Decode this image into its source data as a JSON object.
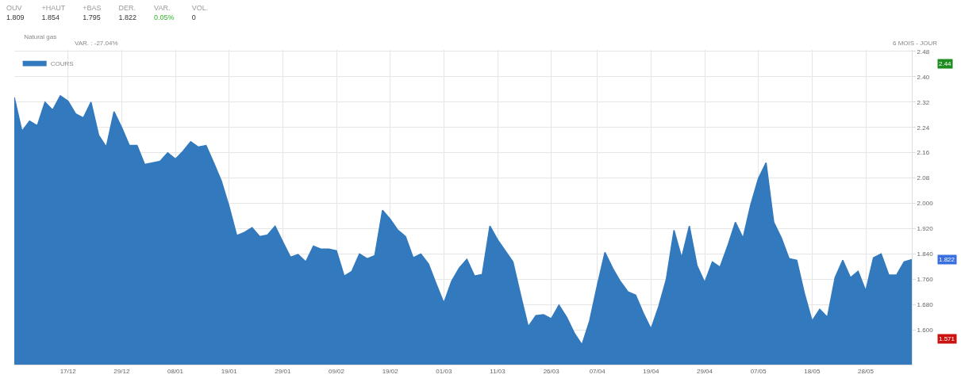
{
  "chart_data": {
    "type": "area",
    "title": "Natural gas",
    "subtitle": "VAR. : -27.04%",
    "annotations": [
      "OUV\n1.809",
      "+HAUT\n1.854",
      "+BAS\n1.795",
      "DER.\n1.822",
      "VAR.\n0.05%",
      "VOL.\n0",
      "6 MOIS - JOUR",
      "2.44",
      "1.822",
      "1.571"
    ],
    "categories": [
      null,
      null,
      null,
      null,
      null,
      null,
      null,
      "17/12",
      null,
      null,
      null,
      null,
      null,
      null,
      "29/12",
      null,
      null,
      null,
      null,
      null,
      null,
      "08/01",
      null,
      null,
      null,
      null,
      null,
      null,
      "19/01",
      null,
      null,
      null,
      null,
      null,
      null,
      "29/01",
      null,
      null,
      null,
      null,
      null,
      null,
      "09/02",
      null,
      null,
      null,
      null,
      null,
      null,
      "19/02",
      null,
      null,
      null,
      null,
      null,
      null,
      "01/03",
      null,
      null,
      null,
      null,
      null,
      null,
      "11/03",
      null,
      null,
      null,
      null,
      null,
      null,
      "26/03",
      null,
      null,
      null,
      null,
      null,
      "07/04",
      null,
      null,
      null,
      null,
      null,
      null,
      "19/04",
      null,
      null,
      null,
      null,
      null,
      null,
      "29/04",
      null,
      null,
      null,
      null,
      null,
      null,
      "07/05",
      null,
      null,
      null,
      null,
      null,
      null,
      "18/05",
      null,
      null,
      null,
      null,
      null,
      null,
      "28/05",
      null,
      null,
      null,
      null,
      null,
      null
    ],
    "series": [
      {
        "name": "COURS",
        "color": "#3279bd",
        "values": [
          2.335,
          2.228,
          2.26,
          2.245,
          2.32,
          2.295,
          2.34,
          2.323,
          2.283,
          2.27,
          2.32,
          2.215,
          2.178,
          2.29,
          2.24,
          2.183,
          2.183,
          2.123,
          2.128,
          2.133,
          2.16,
          2.14,
          2.165,
          2.195,
          2.178,
          2.183,
          2.128,
          2.07,
          1.99,
          1.898,
          1.908,
          1.923,
          1.895,
          1.9,
          1.928,
          1.878,
          1.83,
          1.838,
          1.815,
          1.865,
          1.855,
          1.855,
          1.85,
          1.77,
          1.785,
          1.84,
          1.825,
          1.835,
          1.978,
          1.95,
          1.915,
          1.895,
          1.828,
          1.84,
          1.808,
          1.745,
          1.685,
          1.753,
          1.795,
          1.823,
          1.77,
          1.775,
          1.928,
          1.885,
          1.85,
          1.815,
          1.71,
          1.61,
          1.645,
          1.648,
          1.635,
          1.678,
          1.64,
          1.59,
          1.553,
          1.628,
          1.74,
          1.845,
          1.795,
          1.753,
          1.72,
          1.71,
          1.653,
          1.603,
          1.673,
          1.76,
          1.915,
          1.828,
          1.928,
          1.803,
          1.75,
          1.815,
          1.798,
          1.865,
          1.94,
          1.89,
          1.995,
          2.078,
          2.128,
          1.94,
          1.89,
          1.825,
          1.82,
          1.715,
          1.628,
          1.665,
          1.64,
          1.765,
          1.82,
          1.765,
          1.785,
          1.723,
          1.828,
          1.84,
          1.773,
          1.773,
          1.815,
          1.822
        ]
      }
    ],
    "ylim": [
      1.49,
      2.485
    ],
    "yticks": [
      {
        "value": 1.6,
        "label": "1.600"
      },
      {
        "value": 1.68,
        "label": "1.680"
      },
      {
        "value": 1.76,
        "label": "1.760"
      },
      {
        "value": 1.84,
        "label": "1.840"
      },
      {
        "value": 1.92,
        "label": "1.920"
      },
      {
        "value": 2.0,
        "label": "2.000"
      },
      2.08,
      2.16,
      2.24,
      2.32,
      {
        "value": 2.4,
        "label": "2.40"
      },
      2.48
    ],
    "grid": true,
    "legend": "top left",
    "marker": "none",
    "line_style": "solid"
  }
}
